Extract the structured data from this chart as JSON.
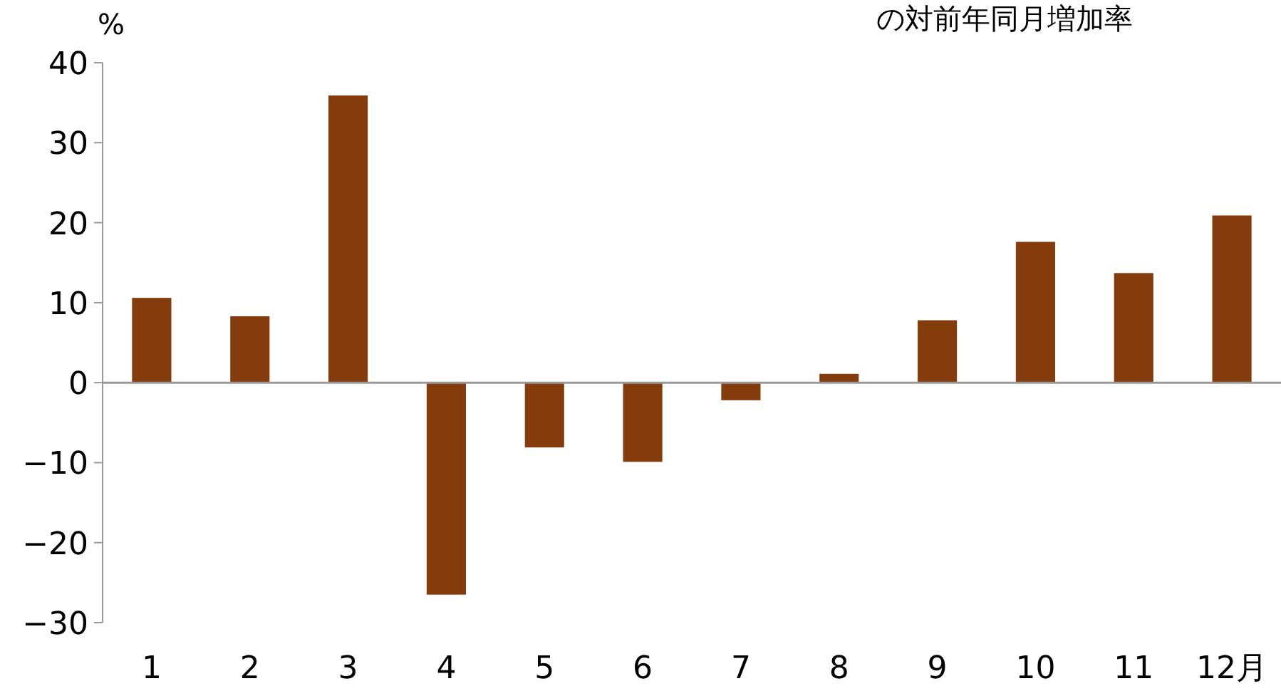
{
  "chart_data": {
    "type": "bar",
    "title": "の対前年同月増加率",
    "ylabel": "%",
    "categories": [
      "1",
      "2",
      "3",
      "4",
      "5",
      "6",
      "7",
      "8",
      "9",
      "10",
      "11",
      "12月"
    ],
    "values": [
      10.6,
      8.3,
      35.9,
      -26.5,
      -8.1,
      -9.9,
      -2.2,
      1.1,
      7.8,
      17.6,
      13.7,
      20.9
    ],
    "color": "#843c0c",
    "ylim": [
      -30,
      40
    ],
    "yticks": [
      -30,
      -20,
      -10,
      0,
      10,
      20,
      30,
      40
    ]
  }
}
